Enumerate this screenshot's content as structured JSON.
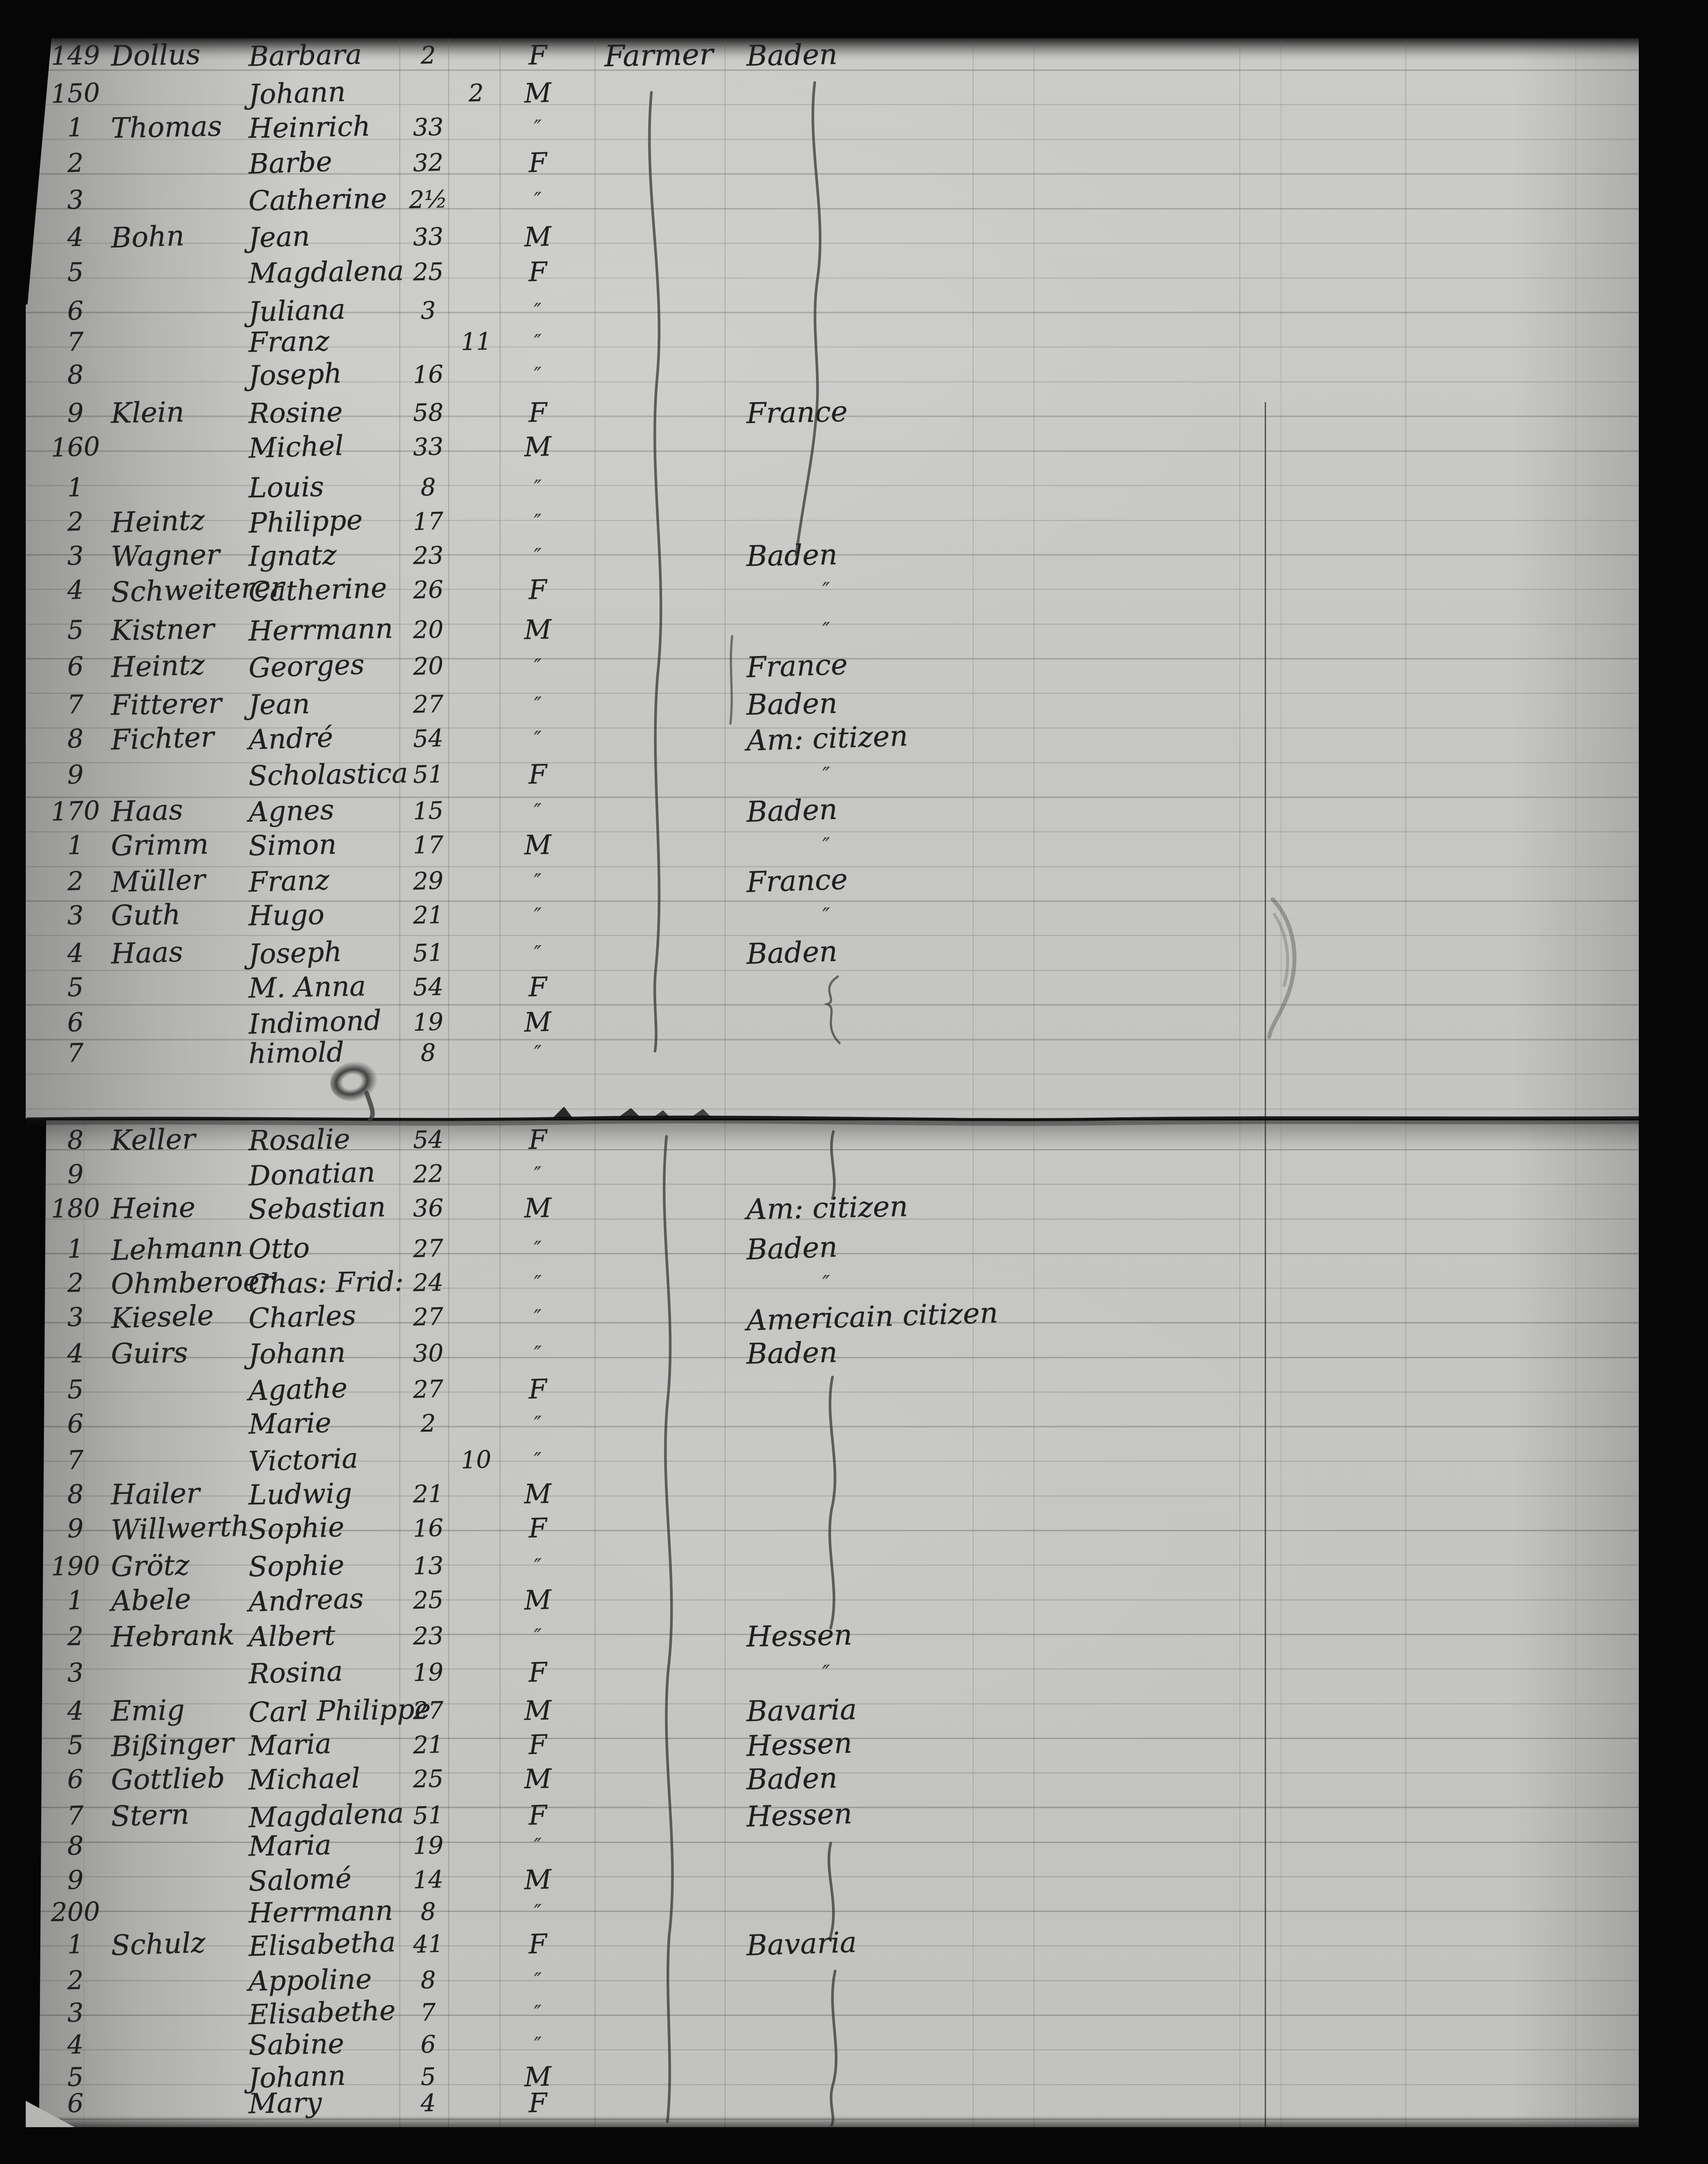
{
  "colors": {
    "paper": "#cbcbc9",
    "paper_lower": "#c6c6c4",
    "ink": "#1f1f1f",
    "rule_line": "#6c6252",
    "background": "#060606",
    "seam": "#101010"
  },
  "ditto_mark": "″",
  "pages": [
    {
      "rows": [
        {
          "number": "149",
          "surname": "Dollus",
          "givenName": "Barbara",
          "ageYears": "2",
          "ageMonths": "",
          "sex": "F",
          "occupation": "Farmer",
          "origin": "Baden"
        },
        {
          "number": "150",
          "surname": "",
          "givenName": "Johann",
          "ageYears": "",
          "ageMonths": "2",
          "sex": "M",
          "occupation": "",
          "origin": ""
        },
        {
          "number": "1",
          "surname": "Thomas",
          "givenName": "Heinrich",
          "ageYears": "33",
          "ageMonths": "",
          "sex": "″",
          "occupation": "",
          "origin": ""
        },
        {
          "number": "2",
          "surname": "",
          "givenName": "Barbe",
          "ageYears": "32",
          "ageMonths": "",
          "sex": "F",
          "occupation": "",
          "origin": ""
        },
        {
          "number": "3",
          "surname": "",
          "givenName": "Catherine",
          "ageYears": "2½",
          "ageMonths": "",
          "sex": "″",
          "occupation": "",
          "origin": ""
        },
        {
          "number": "4",
          "surname": "Bohn",
          "givenName": "Jean",
          "ageYears": "33",
          "ageMonths": "",
          "sex": "M",
          "occupation": "",
          "origin": ""
        },
        {
          "number": "5",
          "surname": "",
          "givenName": "Magdalena",
          "ageYears": "25",
          "ageMonths": "",
          "sex": "F",
          "occupation": "",
          "origin": ""
        },
        {
          "number": "6",
          "surname": "",
          "givenName": "Juliana",
          "ageYears": "3",
          "ageMonths": "",
          "sex": "″",
          "occupation": "",
          "origin": ""
        },
        {
          "number": "7",
          "surname": "",
          "givenName": "Franz",
          "ageYears": "",
          "ageMonths": "11",
          "sex": "″",
          "occupation": "",
          "origin": ""
        },
        {
          "number": "8",
          "surname": "",
          "givenName": "Joseph",
          "ageYears": "16",
          "ageMonths": "",
          "sex": "″",
          "occupation": "",
          "origin": ""
        },
        {
          "number": "9",
          "surname": "Klein",
          "givenName": "Rosine",
          "ageYears": "58",
          "ageMonths": "",
          "sex": "F",
          "occupation": "",
          "origin": "France"
        },
        {
          "number": "160",
          "surname": "",
          "givenName": "Michel",
          "ageYears": "33",
          "ageMonths": "",
          "sex": "M",
          "occupation": "",
          "origin": ""
        },
        {
          "number": "1",
          "surname": "",
          "givenName": "Louis",
          "ageYears": "8",
          "ageMonths": "",
          "sex": "″",
          "occupation": "",
          "origin": ""
        },
        {
          "number": "2",
          "surname": "Heintz",
          "givenName": "Philippe",
          "ageYears": "17",
          "ageMonths": "",
          "sex": "″",
          "occupation": "",
          "origin": ""
        },
        {
          "number": "3",
          "surname": "Wagner",
          "givenName": "Ignatz",
          "ageYears": "23",
          "ageMonths": "",
          "sex": "″",
          "occupation": "",
          "origin": "Baden"
        },
        {
          "number": "4",
          "surname": "Schweiterer",
          "givenName": "Catherine",
          "ageYears": "26",
          "ageMonths": "",
          "sex": "F",
          "occupation": "",
          "origin": "″"
        },
        {
          "number": "5",
          "surname": "Kistner",
          "givenName": "Herrmann",
          "ageYears": "20",
          "ageMonths": "",
          "sex": "M",
          "occupation": "",
          "origin": "″"
        },
        {
          "number": "6",
          "surname": "Heintz",
          "givenName": "Georges",
          "ageYears": "20",
          "ageMonths": "",
          "sex": "″",
          "occupation": "",
          "origin": "France"
        },
        {
          "number": "7",
          "surname": "Fitterer",
          "givenName": "Jean",
          "ageYears": "27",
          "ageMonths": "",
          "sex": "″",
          "occupation": "",
          "origin": "Baden"
        },
        {
          "number": "8",
          "surname": "Fichter",
          "givenName": "André",
          "ageYears": "54",
          "ageMonths": "",
          "sex": "″",
          "occupation": "",
          "origin": "Am: citizen"
        },
        {
          "number": "9",
          "surname": "",
          "givenName": "Scholastica",
          "ageYears": "51",
          "ageMonths": "",
          "sex": "F",
          "occupation": "",
          "origin": "″"
        },
        {
          "number": "170",
          "surname": "Haas",
          "givenName": "Agnes",
          "ageYears": "15",
          "ageMonths": "",
          "sex": "″",
          "occupation": "",
          "origin": "Baden"
        },
        {
          "number": "1",
          "surname": "Grimm",
          "givenName": "Simon",
          "ageYears": "17",
          "ageMonths": "",
          "sex": "M",
          "occupation": "",
          "origin": "″"
        },
        {
          "number": "2",
          "surname": "Müller",
          "givenName": "Franz",
          "ageYears": "29",
          "ageMonths": "",
          "sex": "″",
          "occupation": "",
          "origin": "France"
        },
        {
          "number": "3",
          "surname": "Guth",
          "givenName": "Hugo",
          "ageYears": "21",
          "ageMonths": "",
          "sex": "″",
          "occupation": "",
          "origin": "″"
        },
        {
          "number": "4",
          "surname": "Haas",
          "givenName": "Joseph",
          "ageYears": "51",
          "ageMonths": "",
          "sex": "″",
          "occupation": "",
          "origin": "Baden"
        },
        {
          "number": "5",
          "surname": "",
          "givenName": "M. Anna",
          "ageYears": "54",
          "ageMonths": "",
          "sex": "F",
          "occupation": "",
          "origin": ""
        },
        {
          "number": "6",
          "surname": "",
          "givenName": "Indimond",
          "ageYears": "19",
          "ageMonths": "",
          "sex": "M",
          "occupation": "",
          "origin": ""
        },
        {
          "number": "7",
          "surname": "",
          "givenName": "himold",
          "ageYears": "8",
          "ageMonths": "",
          "sex": "″",
          "occupation": "",
          "origin": ""
        }
      ]
    },
    {
      "rows": [
        {
          "number": "8",
          "surname": "Keller",
          "givenName": "Rosalie",
          "ageYears": "54",
          "ageMonths": "",
          "sex": "F",
          "occupation": "",
          "origin": ""
        },
        {
          "number": "9",
          "surname": "",
          "givenName": "Donatian",
          "ageYears": "22",
          "ageMonths": "",
          "sex": "″",
          "occupation": "",
          "origin": ""
        },
        {
          "number": "180",
          "surname": "Heine",
          "givenName": "Sebastian",
          "ageYears": "36",
          "ageMonths": "",
          "sex": "M",
          "occupation": "",
          "origin": "Am: citizen"
        },
        {
          "number": "1",
          "surname": "Lehmann",
          "givenName": "Otto",
          "ageYears": "27",
          "ageMonths": "",
          "sex": "″",
          "occupation": "",
          "origin": "Baden"
        },
        {
          "number": "2",
          "surname": "Ohmberoer",
          "givenName": "Chas: Frid:",
          "ageYears": "24",
          "ageMonths": "",
          "sex": "″",
          "occupation": "",
          "origin": "″"
        },
        {
          "number": "3",
          "surname": "Kiesele",
          "givenName": "Charles",
          "ageYears": "27",
          "ageMonths": "",
          "sex": "″",
          "occupation": "",
          "origin": "Americain citizen"
        },
        {
          "number": "4",
          "surname": "Guirs",
          "givenName": "Johann",
          "ageYears": "30",
          "ageMonths": "",
          "sex": "″",
          "occupation": "",
          "origin": "Baden"
        },
        {
          "number": "5",
          "surname": "",
          "givenName": "Agathe",
          "ageYears": "27",
          "ageMonths": "",
          "sex": "F",
          "occupation": "",
          "origin": ""
        },
        {
          "number": "6",
          "surname": "",
          "givenName": "Marie",
          "ageYears": "2",
          "ageMonths": "",
          "sex": "″",
          "occupation": "",
          "origin": ""
        },
        {
          "number": "7",
          "surname": "",
          "givenName": "Victoria",
          "ageYears": "",
          "ageMonths": "10",
          "sex": "″",
          "occupation": "",
          "origin": ""
        },
        {
          "number": "8",
          "surname": "Hailer",
          "givenName": "Ludwig",
          "ageYears": "21",
          "ageMonths": "",
          "sex": "M",
          "occupation": "",
          "origin": ""
        },
        {
          "number": "9",
          "surname": "Willwerth",
          "givenName": "Sophie",
          "ageYears": "16",
          "ageMonths": "",
          "sex": "F",
          "occupation": "",
          "origin": ""
        },
        {
          "number": "190",
          "surname": "Grötz",
          "givenName": "Sophie",
          "ageYears": "13",
          "ageMonths": "",
          "sex": "″",
          "occupation": "",
          "origin": ""
        },
        {
          "number": "1",
          "surname": "Abele",
          "givenName": "Andreas",
          "ageYears": "25",
          "ageMonths": "",
          "sex": "M",
          "occupation": "",
          "origin": ""
        },
        {
          "number": "2",
          "surname": "Hebrank",
          "givenName": "Albert",
          "ageYears": "23",
          "ageMonths": "",
          "sex": "″",
          "occupation": "",
          "origin": "Hessen"
        },
        {
          "number": "3",
          "surname": "",
          "givenName": "Rosina",
          "ageYears": "19",
          "ageMonths": "",
          "sex": "F",
          "occupation": "",
          "origin": "″"
        },
        {
          "number": "4",
          "surname": "Emig",
          "givenName": "Carl Philippe",
          "ageYears": "27",
          "ageMonths": "",
          "sex": "M",
          "occupation": "",
          "origin": "Bavaria"
        },
        {
          "number": "5",
          "surname": "Bißinger",
          "givenName": "Maria",
          "ageYears": "21",
          "ageMonths": "",
          "sex": "F",
          "occupation": "",
          "origin": "Hessen"
        },
        {
          "number": "6",
          "surname": "Gottlieb",
          "givenName": "Michael",
          "ageYears": "25",
          "ageMonths": "",
          "sex": "M",
          "occupation": "",
          "origin": "Baden"
        },
        {
          "number": "7",
          "surname": "Stern",
          "givenName": "Magdalena",
          "ageYears": "51",
          "ageMonths": "",
          "sex": "F",
          "occupation": "",
          "origin": "Hessen"
        },
        {
          "number": "8",
          "surname": "",
          "givenName": "Maria",
          "ageYears": "19",
          "ageMonths": "",
          "sex": "″",
          "occupation": "",
          "origin": ""
        },
        {
          "number": "9",
          "surname": "",
          "givenName": "Salomé",
          "ageYears": "14",
          "ageMonths": "",
          "sex": "M",
          "occupation": "",
          "origin": ""
        },
        {
          "number": "200",
          "surname": "",
          "givenName": "Herrmann",
          "ageYears": "8",
          "ageMonths": "",
          "sex": "″",
          "occupation": "",
          "origin": ""
        },
        {
          "number": "1",
          "surname": "Schulz",
          "givenName": "Elisabetha",
          "ageYears": "41",
          "ageMonths": "",
          "sex": "F",
          "occupation": "",
          "origin": "Bavaria"
        },
        {
          "number": "2",
          "surname": "",
          "givenName": "Appoline",
          "ageYears": "8",
          "ageMonths": "",
          "sex": "″",
          "occupation": "",
          "origin": ""
        },
        {
          "number": "3",
          "surname": "",
          "givenName": "Elisabethe",
          "ageYears": "7",
          "ageMonths": "",
          "sex": "″",
          "occupation": "",
          "origin": ""
        },
        {
          "number": "4",
          "surname": "",
          "givenName": "Sabine",
          "ageYears": "6",
          "ageMonths": "",
          "sex": "″",
          "occupation": "",
          "origin": ""
        },
        {
          "number": "5",
          "surname": "",
          "givenName": "Johann",
          "ageYears": "5",
          "ageMonths": "",
          "sex": "M",
          "occupation": "",
          "origin": ""
        },
        {
          "number": "6",
          "surname": "",
          "givenName": "Mary",
          "ageYears": "4",
          "ageMonths": "",
          "sex": "F",
          "occupation": "",
          "origin": ""
        }
      ]
    }
  ]
}
